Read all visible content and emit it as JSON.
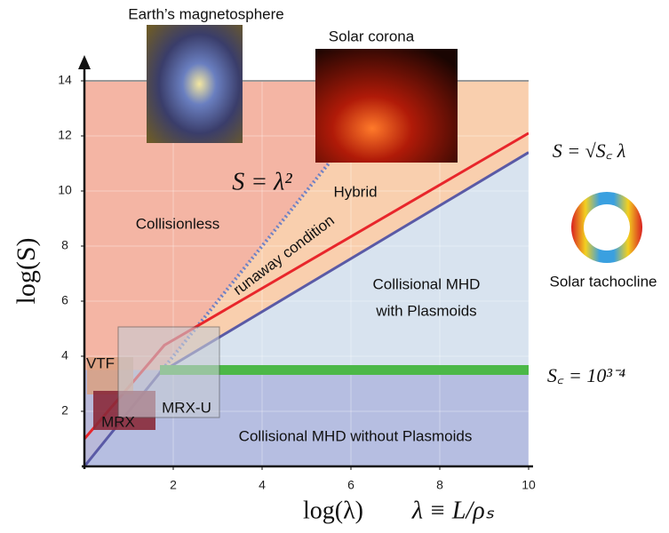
{
  "chart_data": {
    "type": "line",
    "x_label": "log(λ)",
    "x_label_2": "λ ≡ L/ρₛ",
    "y_label": "log(S)",
    "xlim": [
      0,
      10
    ],
    "ylim": [
      0,
      14
    ],
    "xticks": [
      2,
      4,
      6,
      8,
      10
    ],
    "yticks": [
      2,
      4,
      6,
      8,
      10,
      12,
      14
    ],
    "grid": true,
    "series": [
      {
        "color": "#6f82c4",
        "style": "dotted",
        "x": [
          1.7,
          7
        ],
        "values": [
          3.4,
          14
        ]
      },
      {
        "color": "#e8262b",
        "style": "solid",
        "x": [
          0,
          1.8,
          10
        ],
        "values": [
          1,
          4.4,
          12.1
        ]
      },
      {
        "color": "#5a5aa6",
        "style": "solid",
        "x": [
          0,
          1.7,
          10
        ],
        "values": [
          0,
          3.4,
          11.4
        ]
      },
      {
        "color": "#4cb848",
        "style": "thick",
        "x": [
          1.7,
          10
        ],
        "values": [
          3.5,
          3.5
        ]
      }
    ],
    "annotations": {
      "collisionless": "Collisionless",
      "hybrid": "Hybrid",
      "runaway": "runaway condition",
      "plasmoids_1": "Collisional MHD",
      "plasmoids_2": "with Plasmoids",
      "without": "Collisional MHD without Plasmoids",
      "s_lambda2": "S = λ²",
      "s_sqrt": "S = √S꜀ λ",
      "sc": "S꜀ = 10³⁻⁴",
      "magnetosphere": "Earth’s magnetosphere",
      "corona": "Solar corona",
      "tachocline": "Solar tachocline",
      "vtf": "VTF",
      "mrx": "MRX",
      "mrxu": "MRX-U"
    }
  }
}
